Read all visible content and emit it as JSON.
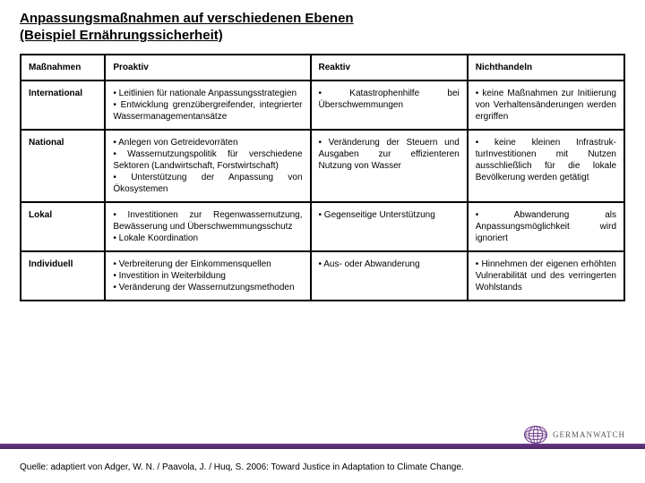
{
  "title": "Anpassungsmaßnahmen auf verschiedenen Ebenen",
  "subtitle": " (Beispiel Ernährungssicherheit)",
  "headers": {
    "c1": "Maßnahmen",
    "c2": "Proaktiv",
    "c3": "Reaktiv",
    "c4": "Nichthandeln"
  },
  "rows": {
    "r1": {
      "label": "International",
      "proaktiv": "• Leitlinien für nationale Anpassungsstrategien\n• Entwicklung grenzübergreifender, integrierter Wassermanagementansätze",
      "reaktiv": "• Katastrophenhilfe bei Überschwemmungen",
      "nicht": "• keine Maßnahmen zur Initiierung von Verhaltens­änderungen werden ergriffen"
    },
    "r2": {
      "label": "National",
      "proaktiv": "• Anlegen von Getreidevorräten\n• Wassernutzungspolitik für verschiedene Sektoren (Landwirtschaft, Forstwirtschaft)\n• Unterstützung der Anpassung von Ökosystemen",
      "reaktiv": "• Veränderung der Steuern und Ausgaben zur effizienteren Nutzung von Wasser",
      "nicht": "• keine kleinen Infrastruk­turInvestitionen mit Nutzen ausschließlich für die lokale Bevölkerung werden getätigt"
    },
    "r3": {
      "label": "Lokal",
      "proaktiv": "• Investitionen zur Regenwasser­nutzung, Bewässerung und Über­schwemmungsschutz\n• Lokale Koordination",
      "reaktiv": "• Gegenseitige Unterstützung",
      "nicht": "• Abwanderung als Anpassungsmöglichkeit wird ignoriert"
    },
    "r4": {
      "label": "Individuell",
      "proaktiv": "• Verbreiterung der Einkommens­quellen\n• Investition in Weiterbildung\n• Veränderung der Wassernutzungsmethoden",
      "reaktiv": "• Aus- oder Abwanderung",
      "nicht": "• Hinnehmen der eigenen erhöhten Vulnerabilität und des verringerten Wohlstands"
    }
  },
  "source": "Quelle: adaptiert von Adger, W. N. / Paavola, J. / Huq, S. 2006: Toward Justice in Adaptation to Climate Change.",
  "logo_text": "GERMANWATCH",
  "colors": {
    "bar": "#5b3a80",
    "border": "#000000"
  }
}
